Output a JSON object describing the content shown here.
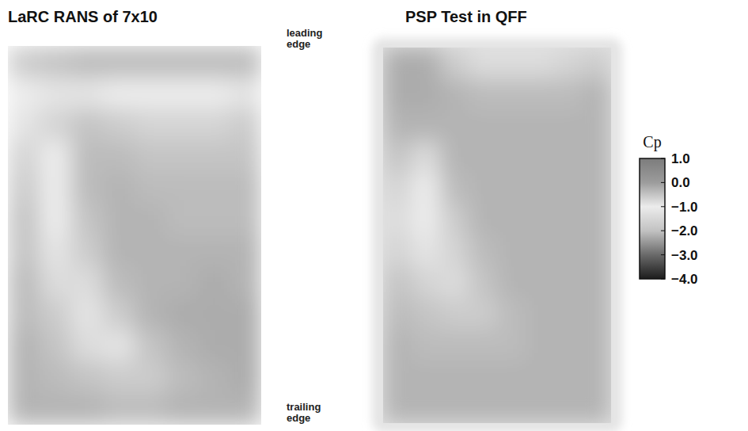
{
  "chart_data": {
    "type": "heatmap",
    "panels": [
      {
        "title": "LaRC RANS of 7x10",
        "cells": [
          [
            -0.6,
            -0.5,
            -0.4,
            -0.4,
            -0.4,
            -0.4,
            -0.4,
            -0.4
          ],
          [
            -1.0,
            -0.9,
            -0.9,
            -1.0,
            -1.0,
            -1.0,
            -1.0,
            -0.9
          ],
          [
            -0.9,
            -0.7,
            -0.5,
            -0.6,
            -0.7,
            -0.7,
            -0.7,
            -0.6
          ],
          [
            -0.7,
            -1.0,
            -0.4,
            -0.4,
            -0.5,
            -0.5,
            -0.5,
            -0.5
          ],
          [
            -0.6,
            -1.0,
            -0.4,
            -0.3,
            -0.4,
            -0.4,
            -0.4,
            -0.4
          ],
          [
            -0.5,
            -1.0,
            -0.5,
            -0.3,
            -0.3,
            -0.4,
            -0.4,
            -0.4
          ],
          [
            -0.5,
            -0.9,
            -0.6,
            -0.3,
            -0.3,
            -0.3,
            -0.3,
            -0.3
          ],
          [
            -0.4,
            -0.8,
            -0.8,
            -0.4,
            -0.3,
            -0.3,
            -0.2,
            -0.3
          ],
          [
            -0.4,
            -0.6,
            -0.9,
            -0.6,
            -0.3,
            -0.2,
            -0.2,
            -0.2
          ],
          [
            -0.3,
            -0.5,
            -0.8,
            -0.9,
            -0.5,
            -0.3,
            -0.2,
            -0.2
          ],
          [
            -0.3,
            -0.4,
            -0.5,
            -0.6,
            -0.6,
            -0.4,
            -0.3,
            -0.2
          ],
          [
            -0.3,
            -0.3,
            -0.3,
            -0.4,
            -0.4,
            -0.3,
            -0.3,
            -0.3
          ]
        ]
      },
      {
        "title": "PSP Test in QFF",
        "cells": [
          [
            -0.2,
            -0.2,
            -0.6,
            -0.8,
            -0.8,
            -0.8,
            -0.7,
            -0.6
          ],
          [
            -0.2,
            -0.2,
            -0.3,
            -0.4,
            -0.4,
            -0.4,
            -0.4,
            -0.3
          ],
          [
            -0.3,
            -0.3,
            -0.3,
            -0.3,
            -0.3,
            -0.3,
            -0.3,
            -0.3
          ],
          [
            -0.5,
            -0.8,
            -0.3,
            -0.3,
            -0.3,
            -0.3,
            -0.3,
            -0.3
          ],
          [
            -0.7,
            -1.0,
            -0.4,
            -0.3,
            -0.3,
            -0.3,
            -0.3,
            -0.3
          ],
          [
            -0.8,
            -1.0,
            -0.6,
            -0.3,
            -0.3,
            -0.3,
            -0.3,
            -0.3
          ],
          [
            -0.7,
            -0.9,
            -0.7,
            -0.4,
            -0.3,
            -0.3,
            -0.3,
            -0.3
          ],
          [
            -0.5,
            -0.7,
            -0.8,
            -0.5,
            -0.3,
            -0.3,
            -0.3,
            -0.3
          ],
          [
            -0.4,
            -0.5,
            -0.6,
            -0.6,
            -0.4,
            -0.3,
            -0.3,
            -0.3
          ],
          [
            -0.3,
            -0.4,
            -0.4,
            -0.4,
            -0.4,
            -0.3,
            -0.3,
            -0.3
          ],
          [
            -0.3,
            -0.3,
            -0.3,
            -0.3,
            -0.3,
            -0.3,
            -0.3,
            -0.3
          ],
          [
            -0.3,
            -0.3,
            -0.3,
            -0.3,
            -0.3,
            -0.3,
            -0.3,
            -0.3
          ]
        ]
      }
    ],
    "annotations": [
      "leading edge",
      "trailing edge"
    ],
    "colorbar": {
      "title": "Cp",
      "range": [
        -4,
        1
      ],
      "ticks": [
        {
          "value": 1,
          "label": "1.0"
        },
        {
          "value": 0,
          "label": "0.0"
        },
        {
          "value": -1,
          "label": "−1.0"
        },
        {
          "value": -2,
          "label": "−2.0"
        },
        {
          "value": -3,
          "label": "−3.0"
        },
        {
          "value": -4,
          "label": "−4.0"
        }
      ]
    }
  }
}
